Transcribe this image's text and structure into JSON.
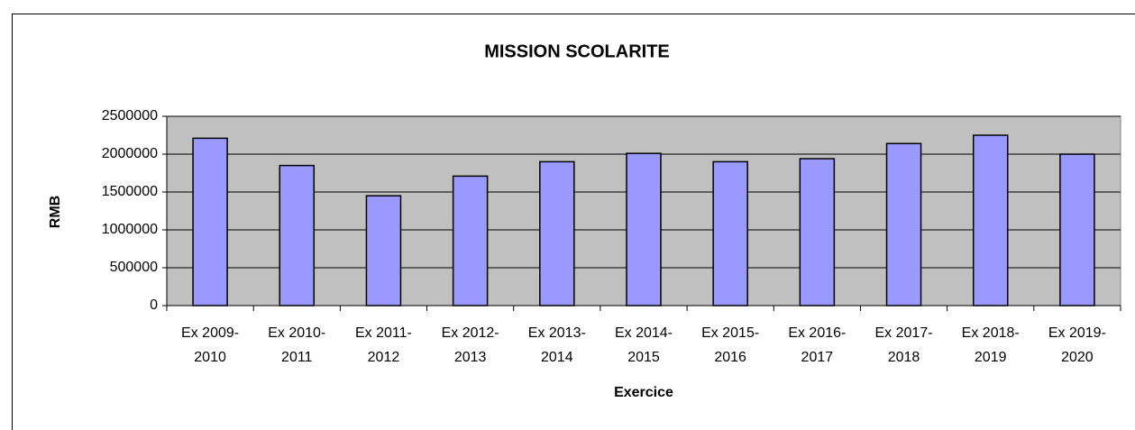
{
  "chart_data": {
    "type": "bar",
    "title": "MISSION SCOLARITE",
    "x_label": "Exercice",
    "y_label": "RMB",
    "categories": [
      "Ex 2009-2010",
      "Ex 2010-2011",
      "Ex 2011-2012",
      "Ex 2012-2013",
      "Ex 2013-2014",
      "Ex 2014-2015",
      "Ex 2015-2016",
      "Ex 2016-2017",
      "Ex 2017-2018",
      "Ex 2018-2019",
      "Ex 2019-2020"
    ],
    "values": [
      2210000,
      1850000,
      1450000,
      1710000,
      1900000,
      2010000,
      1900000,
      1940000,
      2140000,
      2250000,
      2000000
    ],
    "color": "#9999ff",
    "ylim": [
      0,
      2500000
    ],
    "yticks": [
      0,
      500000,
      1000000,
      1500000,
      2000000,
      2500000
    ],
    "grid": true
  }
}
